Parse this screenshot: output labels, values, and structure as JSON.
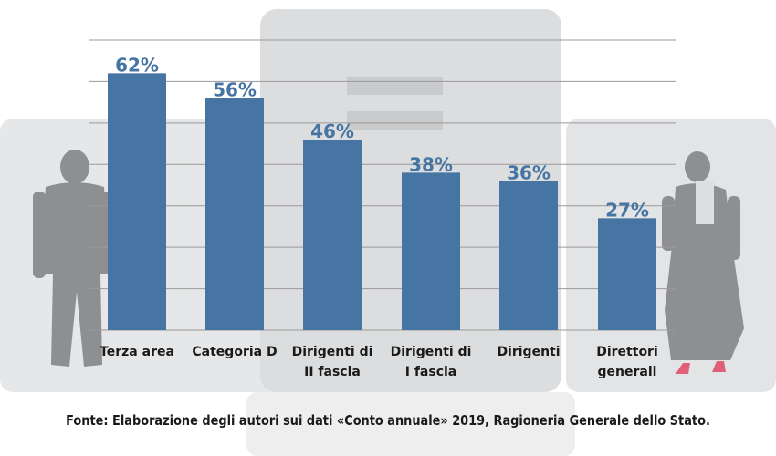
{
  "chart_data": {
    "type": "bar",
    "categories": [
      "Terza area",
      "Categoria D",
      "Dirigenti di II fascia",
      "Dirigenti di I fascia",
      "Dirigenti",
      "Direttori generali"
    ],
    "category_lines": [
      [
        "Terza area"
      ],
      [
        "Categoria D"
      ],
      [
        "Dirigenti di",
        "II fascia"
      ],
      [
        "Dirigenti di",
        "I fascia"
      ],
      [
        "Dirigenti"
      ],
      [
        "Direttori",
        "generali"
      ]
    ],
    "values": [
      62,
      56,
      46,
      38,
      36,
      27
    ],
    "data_labels": [
      "62%",
      "56%",
      "46%",
      "38%",
      "36%",
      "27%"
    ],
    "ylim": [
      0,
      70
    ],
    "grid": true,
    "bar_color": "#4674a3",
    "label_color": "#4674a3",
    "grid_color": "#9a9a9a"
  },
  "footer": {
    "source": "Fonte: Elaborazione degli autori sui dati «Conto annuale» 2019, Ragioneria Generale dello Stato."
  }
}
